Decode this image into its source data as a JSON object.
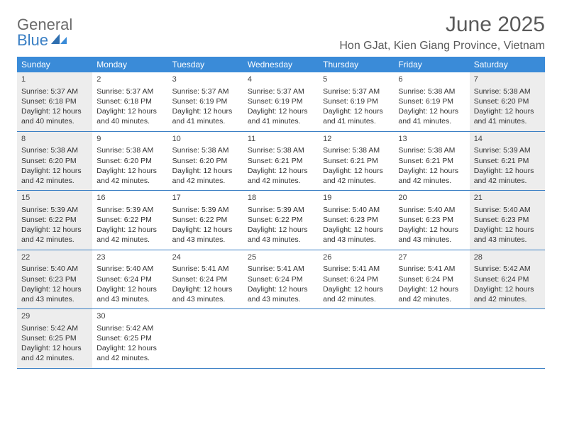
{
  "logo": {
    "text1": "General",
    "text2": "Blue"
  },
  "title": "June 2025",
  "location": "Hon GJat, Kien Giang Province, Vietnam",
  "colors": {
    "header_bg": "#3a8bd8",
    "border": "#3a7fc4",
    "shade": "#ededed",
    "text": "#333333",
    "title": "#5a5a5a"
  },
  "weekdays": [
    "Sunday",
    "Monday",
    "Tuesday",
    "Wednesday",
    "Thursday",
    "Friday",
    "Saturday"
  ],
  "weeks": [
    [
      {
        "d": "1",
        "sr": "5:37 AM",
        "ss": "6:18 PM",
        "dl": "12 hours and 40 minutes.",
        "shade": true
      },
      {
        "d": "2",
        "sr": "5:37 AM",
        "ss": "6:18 PM",
        "dl": "12 hours and 40 minutes.",
        "shade": false
      },
      {
        "d": "3",
        "sr": "5:37 AM",
        "ss": "6:19 PM",
        "dl": "12 hours and 41 minutes.",
        "shade": false
      },
      {
        "d": "4",
        "sr": "5:37 AM",
        "ss": "6:19 PM",
        "dl": "12 hours and 41 minutes.",
        "shade": false
      },
      {
        "d": "5",
        "sr": "5:37 AM",
        "ss": "6:19 PM",
        "dl": "12 hours and 41 minutes.",
        "shade": false
      },
      {
        "d": "6",
        "sr": "5:38 AM",
        "ss": "6:19 PM",
        "dl": "12 hours and 41 minutes.",
        "shade": false
      },
      {
        "d": "7",
        "sr": "5:38 AM",
        "ss": "6:20 PM",
        "dl": "12 hours and 41 minutes.",
        "shade": true
      }
    ],
    [
      {
        "d": "8",
        "sr": "5:38 AM",
        "ss": "6:20 PM",
        "dl": "12 hours and 42 minutes.",
        "shade": true
      },
      {
        "d": "9",
        "sr": "5:38 AM",
        "ss": "6:20 PM",
        "dl": "12 hours and 42 minutes.",
        "shade": false
      },
      {
        "d": "10",
        "sr": "5:38 AM",
        "ss": "6:20 PM",
        "dl": "12 hours and 42 minutes.",
        "shade": false
      },
      {
        "d": "11",
        "sr": "5:38 AM",
        "ss": "6:21 PM",
        "dl": "12 hours and 42 minutes.",
        "shade": false
      },
      {
        "d": "12",
        "sr": "5:38 AM",
        "ss": "6:21 PM",
        "dl": "12 hours and 42 minutes.",
        "shade": false
      },
      {
        "d": "13",
        "sr": "5:38 AM",
        "ss": "6:21 PM",
        "dl": "12 hours and 42 minutes.",
        "shade": false
      },
      {
        "d": "14",
        "sr": "5:39 AM",
        "ss": "6:21 PM",
        "dl": "12 hours and 42 minutes.",
        "shade": true
      }
    ],
    [
      {
        "d": "15",
        "sr": "5:39 AM",
        "ss": "6:22 PM",
        "dl": "12 hours and 42 minutes.",
        "shade": true
      },
      {
        "d": "16",
        "sr": "5:39 AM",
        "ss": "6:22 PM",
        "dl": "12 hours and 42 minutes.",
        "shade": false
      },
      {
        "d": "17",
        "sr": "5:39 AM",
        "ss": "6:22 PM",
        "dl": "12 hours and 43 minutes.",
        "shade": false
      },
      {
        "d": "18",
        "sr": "5:39 AM",
        "ss": "6:22 PM",
        "dl": "12 hours and 43 minutes.",
        "shade": false
      },
      {
        "d": "19",
        "sr": "5:40 AM",
        "ss": "6:23 PM",
        "dl": "12 hours and 43 minutes.",
        "shade": false
      },
      {
        "d": "20",
        "sr": "5:40 AM",
        "ss": "6:23 PM",
        "dl": "12 hours and 43 minutes.",
        "shade": false
      },
      {
        "d": "21",
        "sr": "5:40 AM",
        "ss": "6:23 PM",
        "dl": "12 hours and 43 minutes.",
        "shade": true
      }
    ],
    [
      {
        "d": "22",
        "sr": "5:40 AM",
        "ss": "6:23 PM",
        "dl": "12 hours and 43 minutes.",
        "shade": true
      },
      {
        "d": "23",
        "sr": "5:40 AM",
        "ss": "6:24 PM",
        "dl": "12 hours and 43 minutes.",
        "shade": false
      },
      {
        "d": "24",
        "sr": "5:41 AM",
        "ss": "6:24 PM",
        "dl": "12 hours and 43 minutes.",
        "shade": false
      },
      {
        "d": "25",
        "sr": "5:41 AM",
        "ss": "6:24 PM",
        "dl": "12 hours and 43 minutes.",
        "shade": false
      },
      {
        "d": "26",
        "sr": "5:41 AM",
        "ss": "6:24 PM",
        "dl": "12 hours and 42 minutes.",
        "shade": false
      },
      {
        "d": "27",
        "sr": "5:41 AM",
        "ss": "6:24 PM",
        "dl": "12 hours and 42 minutes.",
        "shade": false
      },
      {
        "d": "28",
        "sr": "5:42 AM",
        "ss": "6:24 PM",
        "dl": "12 hours and 42 minutes.",
        "shade": true
      }
    ],
    [
      {
        "d": "29",
        "sr": "5:42 AM",
        "ss": "6:25 PM",
        "dl": "12 hours and 42 minutes.",
        "shade": true
      },
      {
        "d": "30",
        "sr": "5:42 AM",
        "ss": "6:25 PM",
        "dl": "12 hours and 42 minutes.",
        "shade": false
      },
      null,
      null,
      null,
      null,
      null
    ]
  ],
  "labels": {
    "sunrise": "Sunrise:",
    "sunset": "Sunset:",
    "daylight": "Daylight:"
  }
}
